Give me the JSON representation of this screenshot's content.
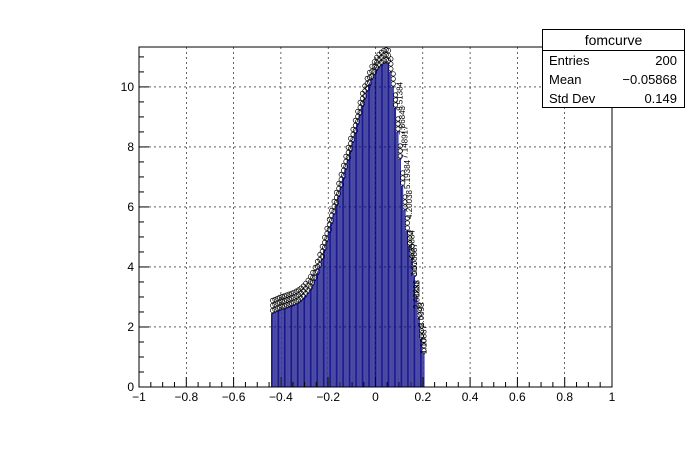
{
  "chart_data": {
    "type": "bar",
    "title": "",
    "xlabel": "",
    "ylabel": "",
    "xlim": [
      -1,
      1
    ],
    "ylim": [
      0,
      11.33
    ],
    "grid": true,
    "x_ticks": [
      -1,
      -0.8,
      -0.6,
      -0.4,
      -0.2,
      0,
      0.2,
      0.4,
      0.6,
      0.8,
      1
    ],
    "x_tick_labels": [
      "−1",
      "−0.8",
      "−0.6",
      "−0.4",
      "−0.2",
      "0",
      "0.2",
      "0.4",
      "0.6",
      "0.8",
      "1"
    ],
    "y_ticks": [
      0,
      2,
      4,
      6,
      8,
      10
    ],
    "y_tick_labels": [
      "0",
      "2",
      "4",
      "6",
      "8",
      "10"
    ],
    "bar_color": "#00007f",
    "bin_width": 0.01,
    "x": [
      -0.435,
      -0.425,
      -0.415,
      -0.405,
      -0.395,
      -0.385,
      -0.375,
      -0.365,
      -0.355,
      -0.345,
      -0.335,
      -0.325,
      -0.315,
      -0.305,
      -0.295,
      -0.285,
      -0.275,
      -0.265,
      -0.255,
      -0.245,
      -0.235,
      -0.225,
      -0.215,
      -0.205,
      -0.195,
      -0.185,
      -0.175,
      -0.165,
      -0.155,
      -0.145,
      -0.135,
      -0.125,
      -0.115,
      -0.105,
      -0.095,
      -0.085,
      -0.075,
      -0.065,
      -0.055,
      -0.045,
      -0.035,
      -0.025,
      -0.015,
      -0.005,
      0.005,
      0.015,
      0.025,
      0.035,
      0.045,
      0.055,
      0.065,
      0.075,
      0.085,
      0.095,
      0.105,
      0.115,
      0.125,
      0.135,
      0.145,
      0.155,
      0.165,
      0.175,
      0.185,
      0.195,
      0.205
    ],
    "values": [
      2.45,
      2.48,
      2.52,
      2.55,
      2.58,
      2.6,
      2.63,
      2.66,
      2.69,
      2.72,
      2.76,
      2.8,
      2.86,
      2.93,
      3.02,
      3.12,
      3.24,
      3.38,
      3.55,
      3.75,
      3.98,
      4.25,
      4.55,
      4.85,
      5.15,
      5.45,
      5.75,
      6.05,
      6.35,
      6.65,
      6.95,
      7.25,
      7.55,
      7.85,
      8.15,
      8.45,
      8.75,
      9.05,
      9.35,
      9.6,
      9.85,
      10.05,
      10.25,
      10.4,
      10.55,
      10.65,
      10.72,
      10.78,
      10.8,
      10.78,
      10.5,
      10.0,
      9.3,
      8.5,
      7.6,
      6.7,
      5.9,
      5.2,
      4.7,
      4.26,
      3.68,
      3.0,
      2.3,
      1.6,
      1.11
    ],
    "point_labels": [
      {
        "x": 0.215,
        "y": 1.1,
        "text": "1.10887"
      },
      {
        "x": 0.205,
        "y": 2.0,
        "text": "2.0093"
      },
      {
        "x": 0.185,
        "y": 2.6,
        "text": "2.68888"
      },
      {
        "x": 0.175,
        "y": 3.68,
        "text": "3.678887"
      },
      {
        "x": 0.165,
        "y": 4.26,
        "text": "4.25884"
      },
      {
        "x": 0.155,
        "y": 5.6,
        "text": "4.20038"
      },
      {
        "x": 0.145,
        "y": 6.6,
        "text": "5.19384"
      },
      {
        "x": 0.135,
        "y": 7.6,
        "text": "7.148917"
      },
      {
        "x": 0.125,
        "y": 8.4,
        "text": "7.86843"
      },
      {
        "x": 0.115,
        "y": 9.2,
        "text": "8.51384"
      }
    ]
  },
  "stats_box": {
    "title": "fomcurve",
    "rows": [
      {
        "label": "Entries",
        "value": "200"
      },
      {
        "label": "Mean",
        "value": "−0.05868"
      },
      {
        "label": "Std Dev",
        "value": "0.149"
      }
    ]
  }
}
